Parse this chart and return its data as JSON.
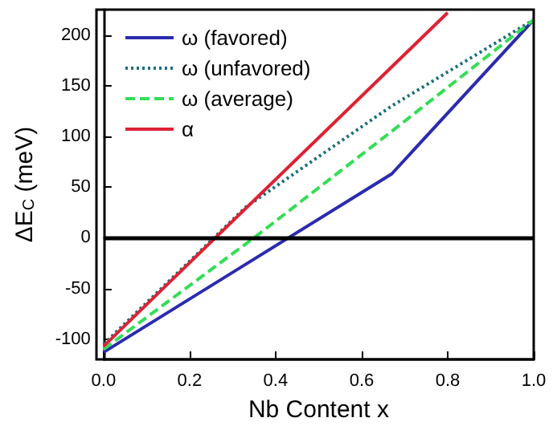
{
  "chart_data": {
    "type": "line",
    "xlabel": "Nb Content x",
    "ylabel": "ΔE$_{C}$ (meV)",
    "xlim": [
      0,
      1
    ],
    "xticks": [
      {
        "value": 0,
        "label": "0.0"
      },
      0.2,
      0.4,
      0.6,
      0.8,
      {
        "value": 1,
        "label": "1.0"
      }
    ],
    "ylim": [
      -120,
      225
    ],
    "yticks": [
      -100,
      -50,
      0,
      50,
      100,
      150,
      200
    ],
    "grid": false,
    "legend": "top left",
    "marker": "none",
    "series": [
      {
        "name": "ω (favored)",
        "color": "#2b2bb0",
        "line_style": "solid",
        "x": [
          0,
          0.67,
          1
        ],
        "values": [
          -113,
          63,
          215
        ]
      },
      {
        "name": "ω (unfavored)",
        "color": "#1a6f7a",
        "line_style": "dotted",
        "x": [
          0,
          0.33,
          0.67,
          1
        ],
        "values": [
          -105,
          30,
          130,
          215
        ]
      },
      {
        "name": "ω (average)",
        "color": "#33dd55",
        "line_style": "dashed",
        "x": [
          0,
          0.35,
          0.67,
          1
        ],
        "values": [
          -110,
          0,
          105,
          215
        ]
      },
      {
        "name": "α",
        "color": "#dd2233",
        "line_style": "solid",
        "x": [
          0,
          0.8
        ],
        "values": [
          -107,
          222
        ]
      }
    ],
    "ref_lines": [
      {
        "axis": "y",
        "value": 0,
        "label": null,
        "color": "#000000",
        "line_style": "solid"
      }
    ]
  }
}
